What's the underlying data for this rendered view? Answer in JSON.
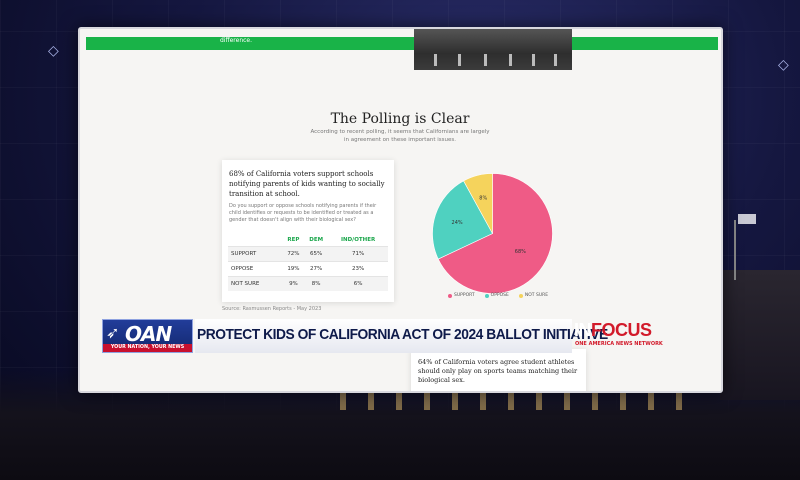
{
  "page": {
    "top_bar_text": "difference.",
    "heading": "The Polling is Clear",
    "subtext": "According to recent polling, it seems that Californians are largely in agreement on these important issues."
  },
  "poll_card": {
    "title": "68% of California voters support schools notifying parents of kids wanting to socially transition at school.",
    "question": "Do you support or oppose schools notifying parents if their child identifies or requests to be identified or treated as a gender that doesn't align with their biological sex?",
    "headers": [
      "REP",
      "DEM",
      "IND/OTHER"
    ],
    "rows": [
      {
        "label": "SUPPORT",
        "values": [
          "72%",
          "65%",
          "71%"
        ]
      },
      {
        "label": "OPPOSE",
        "values": [
          "19%",
          "27%",
          "23%"
        ]
      },
      {
        "label": "NOT SURE",
        "values": [
          "9%",
          "8%",
          "6%"
        ]
      }
    ],
    "source": "Source: Rasmussen Reports - May 2023"
  },
  "chart_data": {
    "type": "pie",
    "slices": [
      {
        "label": "SUPPORT",
        "value": 68,
        "display": "68%",
        "color": "#ef5b86"
      },
      {
        "label": "OPPOSE",
        "value": 24,
        "display": "24%",
        "color": "#4fd1c0"
      },
      {
        "label": "NOT SURE",
        "value": 8,
        "display": "8%",
        "color": "#f5d35c"
      }
    ],
    "legend_placement": "bottom"
  },
  "second_card": {
    "text": "64% of California voters agree student athletes should only play on sports teams matching their biological sex."
  },
  "lower_third": {
    "logo_text": "OAN",
    "logo_tagline": "YOUR NATION, YOUR NEWS",
    "headline": "PROTECT KIDS OF CALIFORNIA ACT OF 2024 BALLOT INITIATIVE",
    "show_in": "IN",
    "show_focus": "FOCUS",
    "network": "ONE AMERICA NEWS NETWORK",
    "brand_color": "#c8102e",
    "navy_color": "#13286f"
  }
}
